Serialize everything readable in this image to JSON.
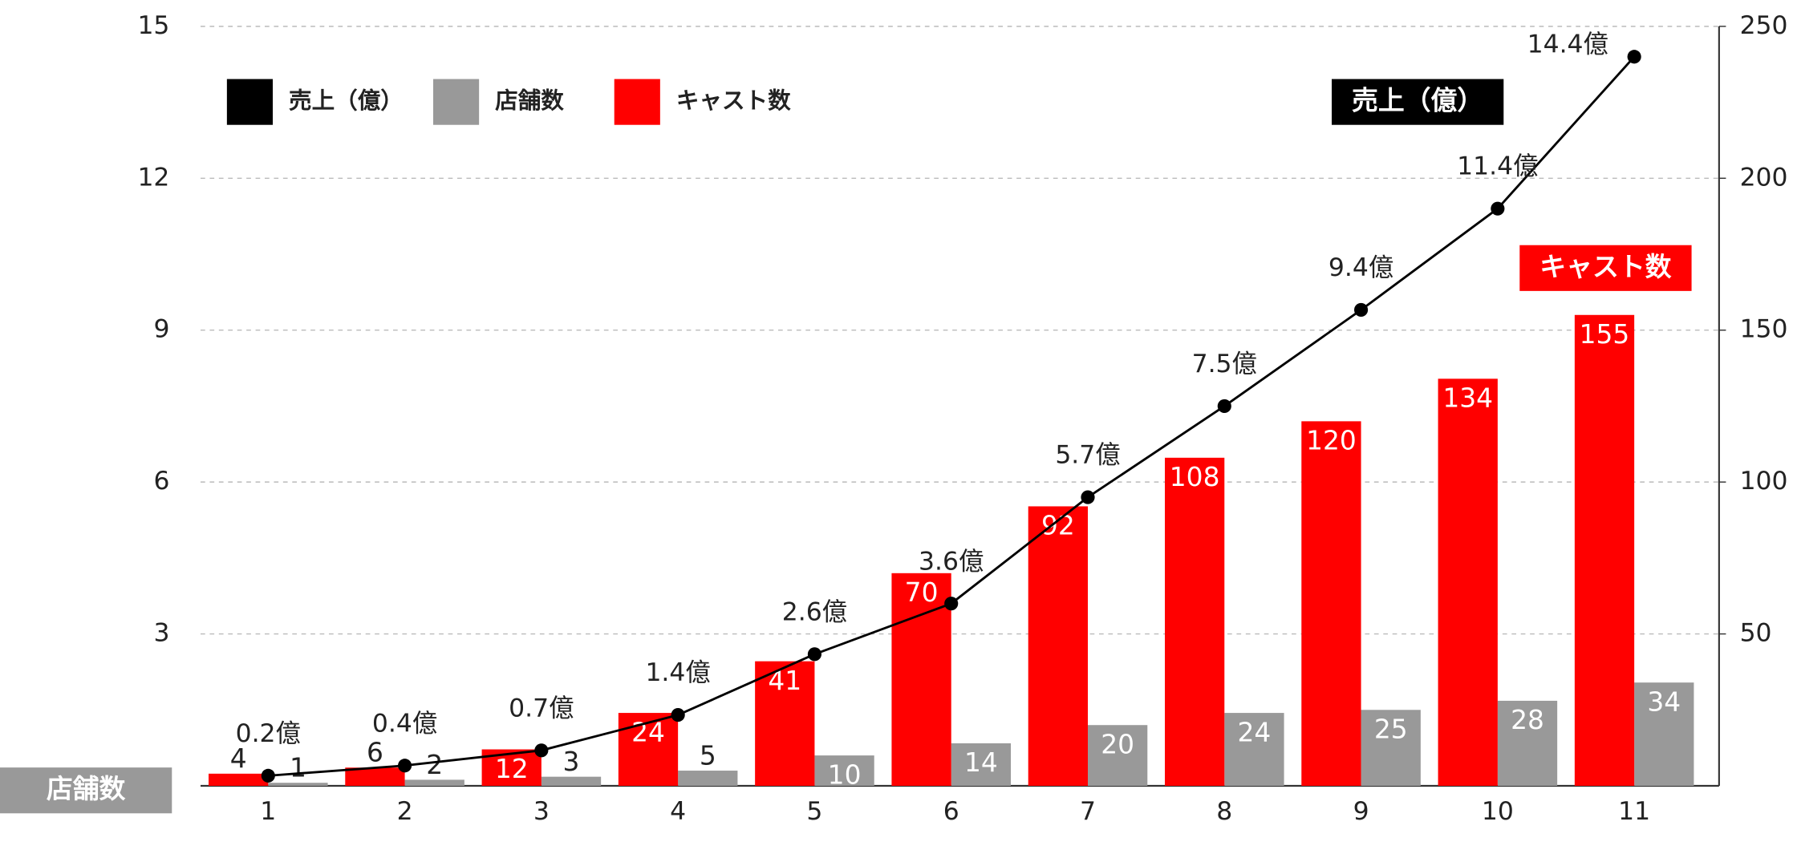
{
  "chart_data": {
    "type": "bar",
    "categories": [
      "1",
      "2",
      "3",
      "4",
      "5",
      "6",
      "7",
      "8",
      "9",
      "10",
      "11"
    ],
    "series": [
      {
        "name": "売上（億）",
        "type": "line",
        "color": "#000000",
        "axis": "y",
        "values": [
          0.2,
          0.4,
          0.7,
          1.4,
          2.6,
          3.6,
          5.7,
          7.5,
          9.4,
          11.4,
          14.4
        ],
        "value_labels": [
          "0.2億",
          "0.4億",
          "0.7億",
          "1.4億",
          "2.6億",
          "3.6億",
          "5.7億",
          "7.5億",
          "9.4億",
          "11.4億",
          "14.4億"
        ]
      },
      {
        "name": "店舗数",
        "type": "bar",
        "color": "#999999",
        "axis": "y2",
        "values": [
          1,
          2,
          3,
          5,
          10,
          14,
          20,
          24,
          25,
          28,
          34
        ]
      },
      {
        "name": "キャスト数",
        "type": "bar",
        "color": "#ff0000",
        "axis": "y2",
        "values": [
          4,
          6,
          12,
          24,
          41,
          70,
          92,
          108,
          120,
          134,
          155
        ]
      }
    ],
    "ylim": [
      0,
      15
    ],
    "yticks": [
      3,
      6,
      9,
      12,
      15
    ],
    "y2lim": [
      0,
      250
    ],
    "y2ticks": [
      50,
      100,
      150,
      200,
      250
    ],
    "grid": true,
    "legend": "upper left",
    "annotations": [
      {
        "text": "売上（億）",
        "color": "#000000"
      },
      {
        "text": "キャスト数",
        "color": "#ff0000"
      },
      {
        "text": "店舗数",
        "color": "#999999"
      }
    ]
  }
}
